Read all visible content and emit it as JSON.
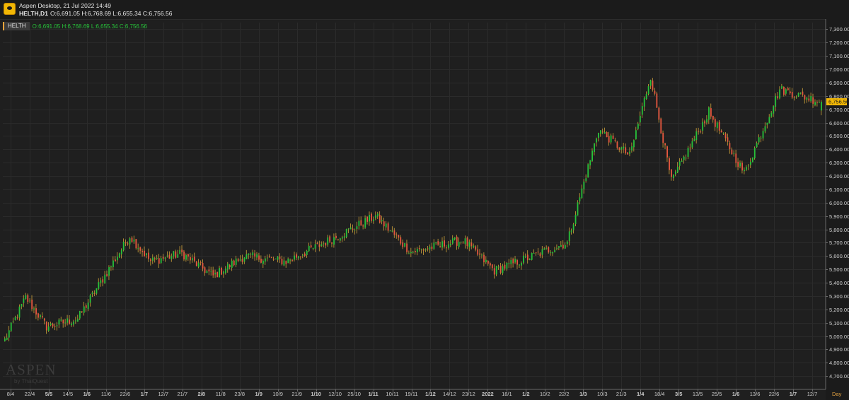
{
  "window": {
    "title": "Aspen Desktop, 21 Jul 2022 14:49",
    "symbol_line": "HELTH,D1",
    "ohlc_line": "O:6,691.05 H:6,768.69 L:6,655.34 C:6,756.56"
  },
  "legend": {
    "symbol": "HELTH",
    "ohlc": "O:6,691.05 H:6,768.69 L:6,655.34 C:6,756.56",
    "color": "#27c23a"
  },
  "watermark": {
    "main": "ASPEN",
    "sub": "by ThaiQuest"
  },
  "timeframe_label": "Day",
  "colors": {
    "up": "#27c23a",
    "down": "#e8583f",
    "wick": "#d0a43a",
    "background": "#1f1f1f",
    "grid": "#2b2b2b",
    "price_tag": "#f2b705"
  },
  "chart_data": {
    "type": "candlestick",
    "title": "",
    "xlabel": "",
    "ylabel": "",
    "ylim": [
      4600,
      7350
    ],
    "y_ticks": [
      4700,
      4800,
      4900,
      5000,
      5100,
      5200,
      5300,
      5400,
      5500,
      5600,
      5700,
      5800,
      5900,
      6000,
      6100,
      6200,
      6300,
      6400,
      6500,
      6600,
      6700,
      6800,
      6900,
      7000,
      7100,
      7200,
      7300
    ],
    "y_tick_labels": [
      "4,700.00",
      "4,800.00",
      "4,900.00",
      "5,000.00",
      "5,100.00",
      "5,200.00",
      "5,300.00",
      "5,400.00",
      "5,500.00",
      "5,600.00",
      "5,700.00",
      "5,800.00",
      "5,900.00",
      "6,000.00",
      "6,100.00",
      "6,200.00",
      "6,300.00",
      "6,400.00",
      "6,500.00",
      "6,600.00",
      "6,700.00",
      "6,800.00",
      "6,900.00",
      "7,000.00",
      "7,100.00",
      "7,200.00",
      "7,300.00"
    ],
    "x_tick_labels": [
      {
        "label": "8/4",
        "bold": false
      },
      {
        "label": "22/4",
        "bold": false
      },
      {
        "label": "5/5",
        "bold": true
      },
      {
        "label": "14/5",
        "bold": false
      },
      {
        "label": "1/6",
        "bold": true
      },
      {
        "label": "11/6",
        "bold": false
      },
      {
        "label": "22/6",
        "bold": false
      },
      {
        "label": "1/7",
        "bold": true
      },
      {
        "label": "12/7",
        "bold": false
      },
      {
        "label": "21/7",
        "bold": false
      },
      {
        "label": "2/8",
        "bold": true
      },
      {
        "label": "11/8",
        "bold": false
      },
      {
        "label": "23/8",
        "bold": false
      },
      {
        "label": "1/9",
        "bold": true
      },
      {
        "label": "10/9",
        "bold": false
      },
      {
        "label": "21/9",
        "bold": false
      },
      {
        "label": "1/10",
        "bold": true
      },
      {
        "label": "12/10",
        "bold": false
      },
      {
        "label": "25/10",
        "bold": false
      },
      {
        "label": "1/11",
        "bold": true
      },
      {
        "label": "10/11",
        "bold": false
      },
      {
        "label": "19/11",
        "bold": false
      },
      {
        "label": "1/12",
        "bold": true
      },
      {
        "label": "14/12",
        "bold": false
      },
      {
        "label": "23/12",
        "bold": false
      },
      {
        "label": "2022",
        "bold": true
      },
      {
        "label": "18/1",
        "bold": false
      },
      {
        "label": "1/2",
        "bold": true
      },
      {
        "label": "10/2",
        "bold": false
      },
      {
        "label": "22/2",
        "bold": false
      },
      {
        "label": "1/3",
        "bold": true
      },
      {
        "label": "10/3",
        "bold": false
      },
      {
        "label": "21/3",
        "bold": false
      },
      {
        "label": "1/4",
        "bold": true
      },
      {
        "label": "18/4",
        "bold": false
      },
      {
        "label": "3/5",
        "bold": true
      },
      {
        "label": "13/5",
        "bold": false
      },
      {
        "label": "25/5",
        "bold": false
      },
      {
        "label": "1/6",
        "bold": true
      },
      {
        "label": "13/6",
        "bold": false
      },
      {
        "label": "22/6",
        "bold": false
      },
      {
        "label": "1/7",
        "bold": true
      },
      {
        "label": "12/7",
        "bold": false
      }
    ],
    "last_price": 6756.56,
    "last_price_label": "6,756.56",
    "key_closes": [
      4970,
      5290,
      5070,
      5130,
      5380,
      5750,
      5560,
      5620,
      5450,
      5600,
      5560,
      5750,
      5900,
      5630,
      5720,
      5490,
      5700,
      6550,
      6350,
      6950,
      6160,
      6680,
      6220,
      6850,
      6756.56
    ],
    "key_bars": [
      0,
      10,
      20,
      35,
      45,
      60,
      70,
      85,
      100,
      115,
      135,
      160,
      178,
      195,
      220,
      235,
      270,
      285,
      300,
      310,
      320,
      338,
      355,
      372,
      392
    ],
    "bar_count": 393,
    "final_bar": {
      "o": 6691.05,
      "h": 6768.69,
      "l": 6655.34,
      "c": 6756.56
    }
  }
}
